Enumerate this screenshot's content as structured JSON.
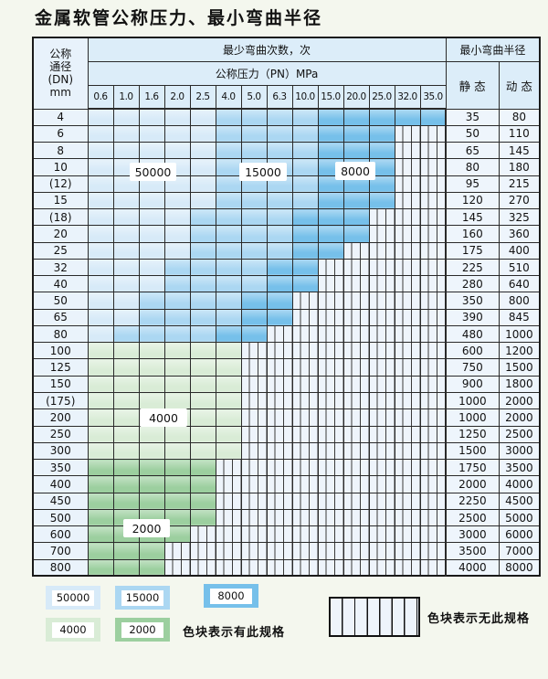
{
  "page": {
    "title": "金属软管公称压力、最小弯曲半径"
  },
  "colors": {
    "c50000": "#d7eaf8",
    "c15000": "#abd7f2",
    "c8000": "#76c0ea",
    "c4000": "#d9ecd6",
    "c2000": "#9ccf9f"
  },
  "table": {
    "header": {
      "dn_lines": "公称\n通径\n(DN)\nmm",
      "bend_times": "最少弯曲次数，次",
      "pressure": "公称压力（PN）MPa",
      "min_radius": "最小弯曲半径",
      "static_label": "静 态",
      "dynamic_label": "动 态",
      "pressure_cols": [
        "0.6",
        "1.0",
        "1.6",
        "2.0",
        "2.5",
        "4.0",
        "5.0",
        "6.3",
        "10.0",
        "15.0",
        "20.0",
        "25.0",
        "32.0",
        "35.0"
      ]
    },
    "rows": [
      {
        "dn": "4",
        "colored": 14,
        "static": "35",
        "dynamic": "80"
      },
      {
        "dn": "6",
        "colored": 12,
        "static": "50",
        "dynamic": "110"
      },
      {
        "dn": "8",
        "colored": 12,
        "static": "65",
        "dynamic": "145"
      },
      {
        "dn": "10",
        "colored": 12,
        "static": "80",
        "dynamic": "180"
      },
      {
        "dn": "(12)",
        "colored": 12,
        "static": "95",
        "dynamic": "215"
      },
      {
        "dn": "15",
        "colored": 12,
        "static": "120",
        "dynamic": "270"
      },
      {
        "dn": "(18)",
        "colored": 11,
        "static": "145",
        "dynamic": "325"
      },
      {
        "dn": "20",
        "colored": 11,
        "static": "160",
        "dynamic": "360"
      },
      {
        "dn": "25",
        "colored": 10,
        "static": "175",
        "dynamic": "400"
      },
      {
        "dn": "32",
        "colored": 9,
        "static": "225",
        "dynamic": "510"
      },
      {
        "dn": "40",
        "colored": 9,
        "static": "280",
        "dynamic": "640"
      },
      {
        "dn": "50",
        "colored": 8,
        "static": "350",
        "dynamic": "800"
      },
      {
        "dn": "65",
        "colored": 8,
        "static": "390",
        "dynamic": "845"
      },
      {
        "dn": "80",
        "colored": 7,
        "static": "480",
        "dynamic": "1000"
      },
      {
        "dn": "100",
        "colored": 6,
        "static": "600",
        "dynamic": "1200"
      },
      {
        "dn": "125",
        "colored": 6,
        "static": "750",
        "dynamic": "1500"
      },
      {
        "dn": "150",
        "colored": 6,
        "static": "900",
        "dynamic": "1800"
      },
      {
        "dn": "(175)",
        "colored": 6,
        "static": "1000",
        "dynamic": "2000"
      },
      {
        "dn": "200",
        "colored": 6,
        "static": "1000",
        "dynamic": "2000"
      },
      {
        "dn": "250",
        "colored": 6,
        "static": "1250",
        "dynamic": "2500"
      },
      {
        "dn": "300",
        "colored": 6,
        "static": "1500",
        "dynamic": "3000"
      },
      {
        "dn": "350",
        "colored": 5,
        "static": "1750",
        "dynamic": "3500"
      },
      {
        "dn": "400",
        "colored": 5,
        "static": "2000",
        "dynamic": "4000"
      },
      {
        "dn": "450",
        "colored": 5,
        "static": "2250",
        "dynamic": "4500"
      },
      {
        "dn": "500",
        "colored": 5,
        "static": "2500",
        "dynamic": "5000"
      },
      {
        "dn": "600",
        "colored": 4,
        "static": "3000",
        "dynamic": "6000"
      },
      {
        "dn": "700",
        "colored": 3,
        "static": "3500",
        "dynamic": "7000"
      },
      {
        "dn": "800",
        "colored": 3,
        "static": "4000",
        "dynamic": "8000"
      }
    ]
  },
  "overlays": {
    "v50000": "50000",
    "v15000": "15000",
    "v8000": "8000",
    "v4000": "4000",
    "v2000": "2000"
  },
  "legend": {
    "b50000": "50000",
    "b15000": "15000",
    "b8000": "8000",
    "b4000": "4000",
    "b2000": "2000",
    "has_spec": "色块表示有此规格",
    "no_spec": "色块表示无此规格"
  }
}
